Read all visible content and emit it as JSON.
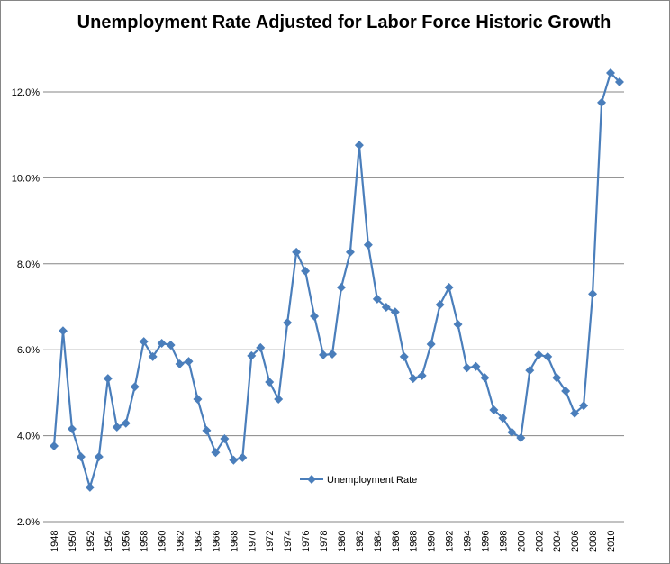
{
  "chart_data": {
    "type": "line",
    "title": "Unemployment Rate Adjusted for Labor Force Historic Growth",
    "xlabel": "",
    "ylabel": "",
    "ylim": [
      2.0,
      12.0
    ],
    "yticks": [
      "2.0%",
      "4.0%",
      "6.0%",
      "8.0%",
      "10.0%",
      "12.0%"
    ],
    "grid": true,
    "legend_position": "bottom-center-inside",
    "x": [
      1948,
      1949,
      1950,
      1951,
      1952,
      1953,
      1954,
      1955,
      1956,
      1957,
      1958,
      1959,
      1960,
      1961,
      1962,
      1963,
      1964,
      1965,
      1966,
      1967,
      1968,
      1969,
      1970,
      1971,
      1972,
      1973,
      1974,
      1975,
      1976,
      1977,
      1978,
      1979,
      1980,
      1981,
      1982,
      1983,
      1984,
      1985,
      1986,
      1987,
      1988,
      1989,
      1990,
      1991,
      1992,
      1993,
      1994,
      1995,
      1996,
      1997,
      1998,
      1999,
      2000,
      2001,
      2002,
      2003,
      2004,
      2005,
      2006,
      2007,
      2008,
      2009,
      2010,
      2011
    ],
    "xtick_labels": [
      "1948",
      "1950",
      "1952",
      "1954",
      "1956",
      "1958",
      "1960",
      "1962",
      "1964",
      "1966",
      "1968",
      "1970",
      "1972",
      "1974",
      "1976",
      "1978",
      "1980",
      "1982",
      "1984",
      "1986",
      "1988",
      "1990",
      "1992",
      "1994",
      "1996",
      "1998",
      "2000",
      "2002",
      "2004",
      "2006",
      "2008",
      "2010"
    ],
    "series": [
      {
        "name": "Unemployment Rate",
        "color": "#4a7ebb",
        "values": [
          3.76,
          6.44,
          4.16,
          3.51,
          2.8,
          3.51,
          5.33,
          4.2,
          4.29,
          5.14,
          6.19,
          5.84,
          6.15,
          6.11,
          5.67,
          5.73,
          4.85,
          4.12,
          3.61,
          3.93,
          3.43,
          3.49,
          5.86,
          6.05,
          5.25,
          4.85,
          6.63,
          8.27,
          7.83,
          6.78,
          5.88,
          5.9,
          7.45,
          8.27,
          10.76,
          8.44,
          7.18,
          6.99,
          6.88,
          5.84,
          5.33,
          5.4,
          6.13,
          7.05,
          7.45,
          6.59,
          5.58,
          5.61,
          5.35,
          4.6,
          4.41,
          4.08,
          3.95,
          5.52,
          5.88,
          5.84,
          5.35,
          5.04,
          4.52,
          4.7,
          7.3,
          11.75,
          12.44,
          12.23
        ]
      }
    ]
  }
}
